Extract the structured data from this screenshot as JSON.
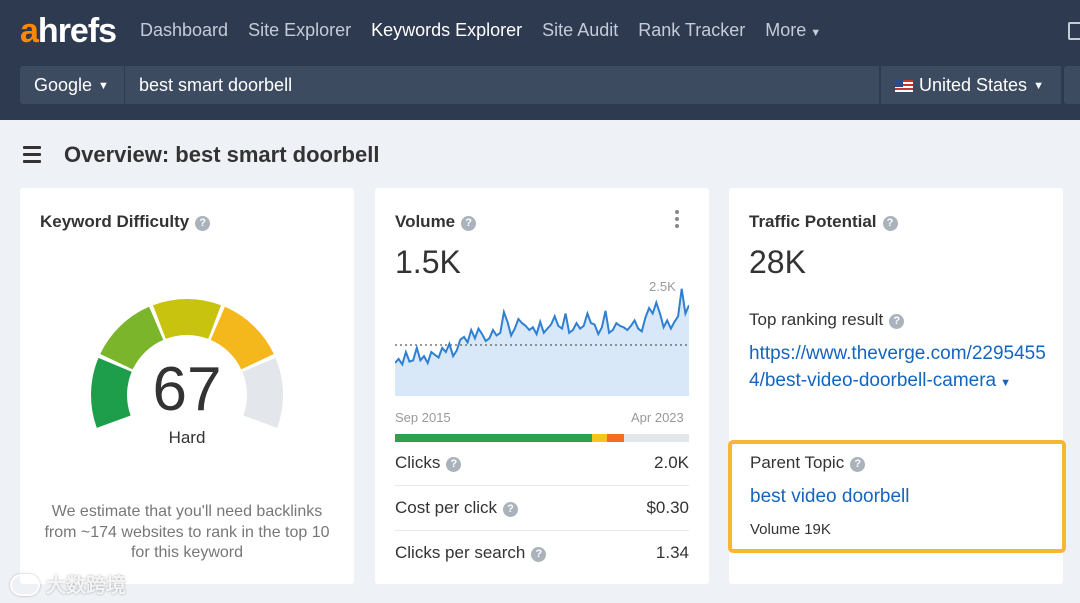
{
  "logo": {
    "first_letter": "a",
    "rest": "hrefs"
  },
  "nav": {
    "items": [
      {
        "label": "Dashboard",
        "active": false
      },
      {
        "label": "Site Explorer",
        "active": false
      },
      {
        "label": "Keywords Explorer",
        "active": true
      },
      {
        "label": "Site Audit",
        "active": false
      },
      {
        "label": "Rank Tracker",
        "active": false
      },
      {
        "label": "More",
        "active": false
      }
    ]
  },
  "search": {
    "engine": "Google",
    "keyword": "best smart doorbell",
    "country": "United States",
    "country_flag_icon": "us-flag-icon"
  },
  "page": {
    "title": "Overview: best smart doorbell"
  },
  "keyword_difficulty": {
    "label": "Keyword Difficulty",
    "value": "67",
    "level": "Hard",
    "score": 67,
    "description": "We estimate that you'll need backlinks from ~174 websites to rank in the top 10 for this keyword",
    "gauge_colors": [
      "#1e9e4a",
      "#7ab52b",
      "#c8c30f",
      "#f5b81c",
      "#e3e6ea"
    ]
  },
  "volume": {
    "label": "Volume",
    "value": "1.5K",
    "axis_max": "2.5K",
    "axis_start": "Sep 2015",
    "axis_end": "Apr 2023",
    "trend": [
      120,
      135,
      115,
      160,
      125,
      130,
      175,
      130,
      145,
      120,
      160,
      150,
      140,
      175,
      160,
      190,
      145,
      165,
      205,
      215,
      195,
      240,
      210,
      245,
      225,
      200,
      210,
      240,
      220,
      230,
      305,
      270,
      220,
      245,
      280,
      265,
      255,
      240,
      250,
      225,
      270,
      230,
      245,
      260,
      290,
      255,
      245,
      300,
      230,
      240,
      265,
      245,
      255,
      300,
      265,
      260,
      225,
      250,
      310,
      230,
      240,
      265,
      255,
      250,
      240,
      255,
      275,
      245,
      235,
      285,
      320,
      300,
      340,
      300,
      250,
      275,
      245,
      270,
      290,
      390,
      300,
      330
    ],
    "trend_colors": {
      "line": "#2f80d1",
      "fill": "#d8e8f8",
      "reference": "#333333"
    },
    "intent_segments": [
      {
        "share": 0.67,
        "color": "#2ea14e"
      },
      {
        "share": 0.05,
        "color": "#f5c518"
      },
      {
        "share": 0.06,
        "color": "#f26c21"
      },
      {
        "share": 0.22,
        "color": "#e3e6ea"
      }
    ],
    "metrics": [
      {
        "label": "Clicks",
        "value": "2.0K"
      },
      {
        "label": "Cost per click",
        "value": "$0.30"
      },
      {
        "label": "Clicks per search",
        "value": "1.34"
      }
    ]
  },
  "traffic_potential": {
    "label": "Traffic Potential",
    "value": "28K",
    "top_ranking_label": "Top ranking result",
    "top_ranking_url": "https://www.theverge.com/22954554/best-video-doorbell-camera"
  },
  "parent_topic": {
    "label": "Parent Topic",
    "keyword": "best video doorbell",
    "volume": "Volume 19K",
    "highlight_color": "#f7b731"
  },
  "watermark": {
    "text": "大数跨境"
  }
}
